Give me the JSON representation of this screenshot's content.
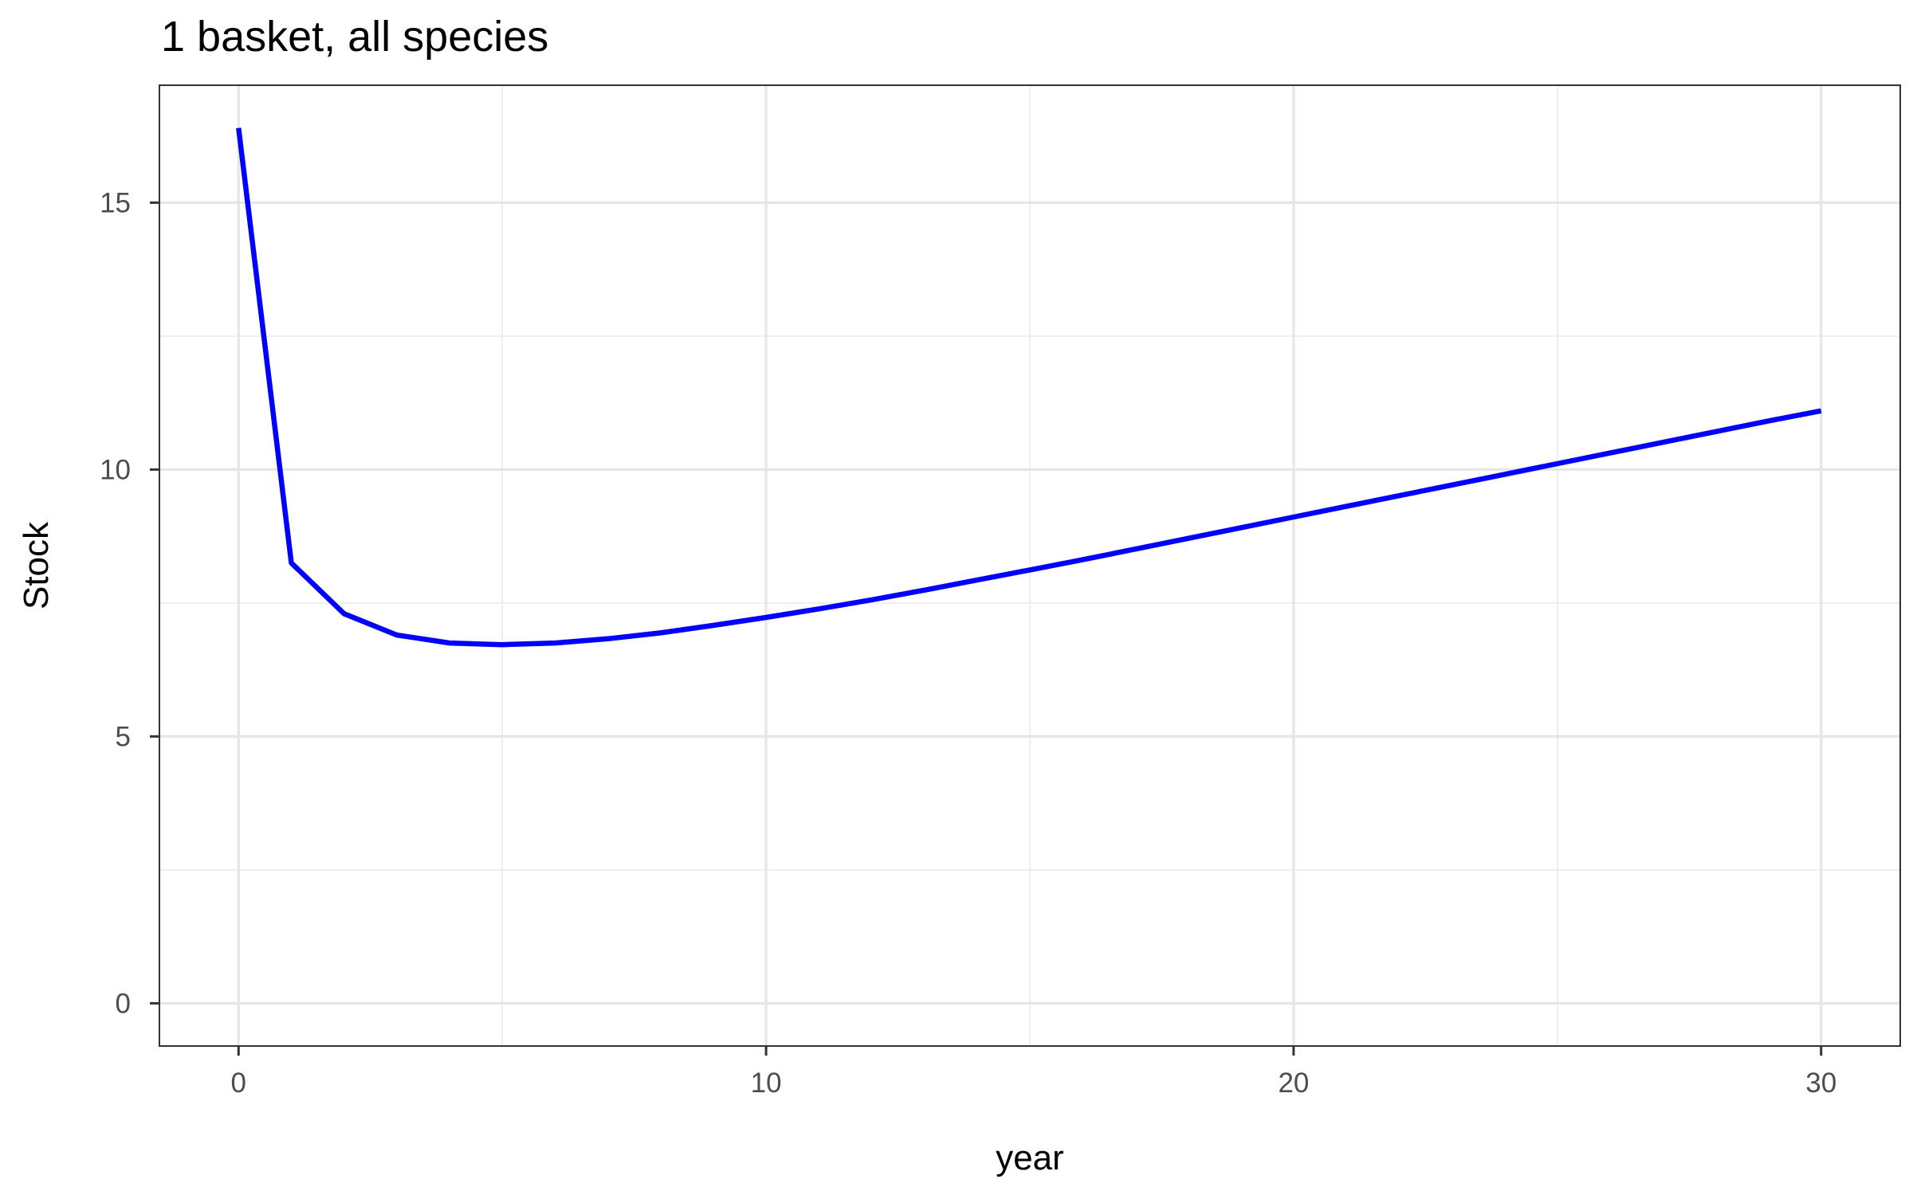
{
  "chart_data": {
    "type": "line",
    "title": "1 basket, all species",
    "xlabel": "year",
    "ylabel": "Stock",
    "xlim": [
      -1.5,
      31.5
    ],
    "ylim": [
      -0.8,
      17.2
    ],
    "x_ticks": [
      0,
      10,
      20,
      30
    ],
    "x_tick_labels": [
      "0",
      "10",
      "20",
      "30"
    ],
    "x_minor_ticks": [
      5,
      15,
      25
    ],
    "y_ticks": [
      0,
      5,
      10,
      15
    ],
    "y_tick_labels": [
      "0",
      "5",
      "10",
      "15"
    ],
    "y_minor_ticks": [
      2.5,
      7.5,
      12.5
    ],
    "grid": true,
    "legend": "none",
    "series": [
      {
        "color": "#0000ff",
        "x": [
          0,
          1,
          2,
          3,
          4,
          5,
          6,
          7,
          8,
          9,
          10,
          11,
          12,
          13,
          14,
          15,
          16,
          17,
          18,
          19,
          20,
          21,
          22,
          23,
          24,
          25,
          26,
          27,
          28,
          29,
          30
        ],
        "y": [
          16.4,
          8.25,
          7.3,
          6.9,
          6.75,
          6.72,
          6.75,
          6.83,
          6.94,
          7.08,
          7.23,
          7.39,
          7.56,
          7.74,
          7.93,
          8.12,
          8.31,
          8.51,
          8.71,
          8.91,
          9.11,
          9.31,
          9.51,
          9.71,
          9.91,
          10.11,
          10.31,
          10.51,
          10.71,
          10.91,
          11.1
        ]
      }
    ]
  }
}
